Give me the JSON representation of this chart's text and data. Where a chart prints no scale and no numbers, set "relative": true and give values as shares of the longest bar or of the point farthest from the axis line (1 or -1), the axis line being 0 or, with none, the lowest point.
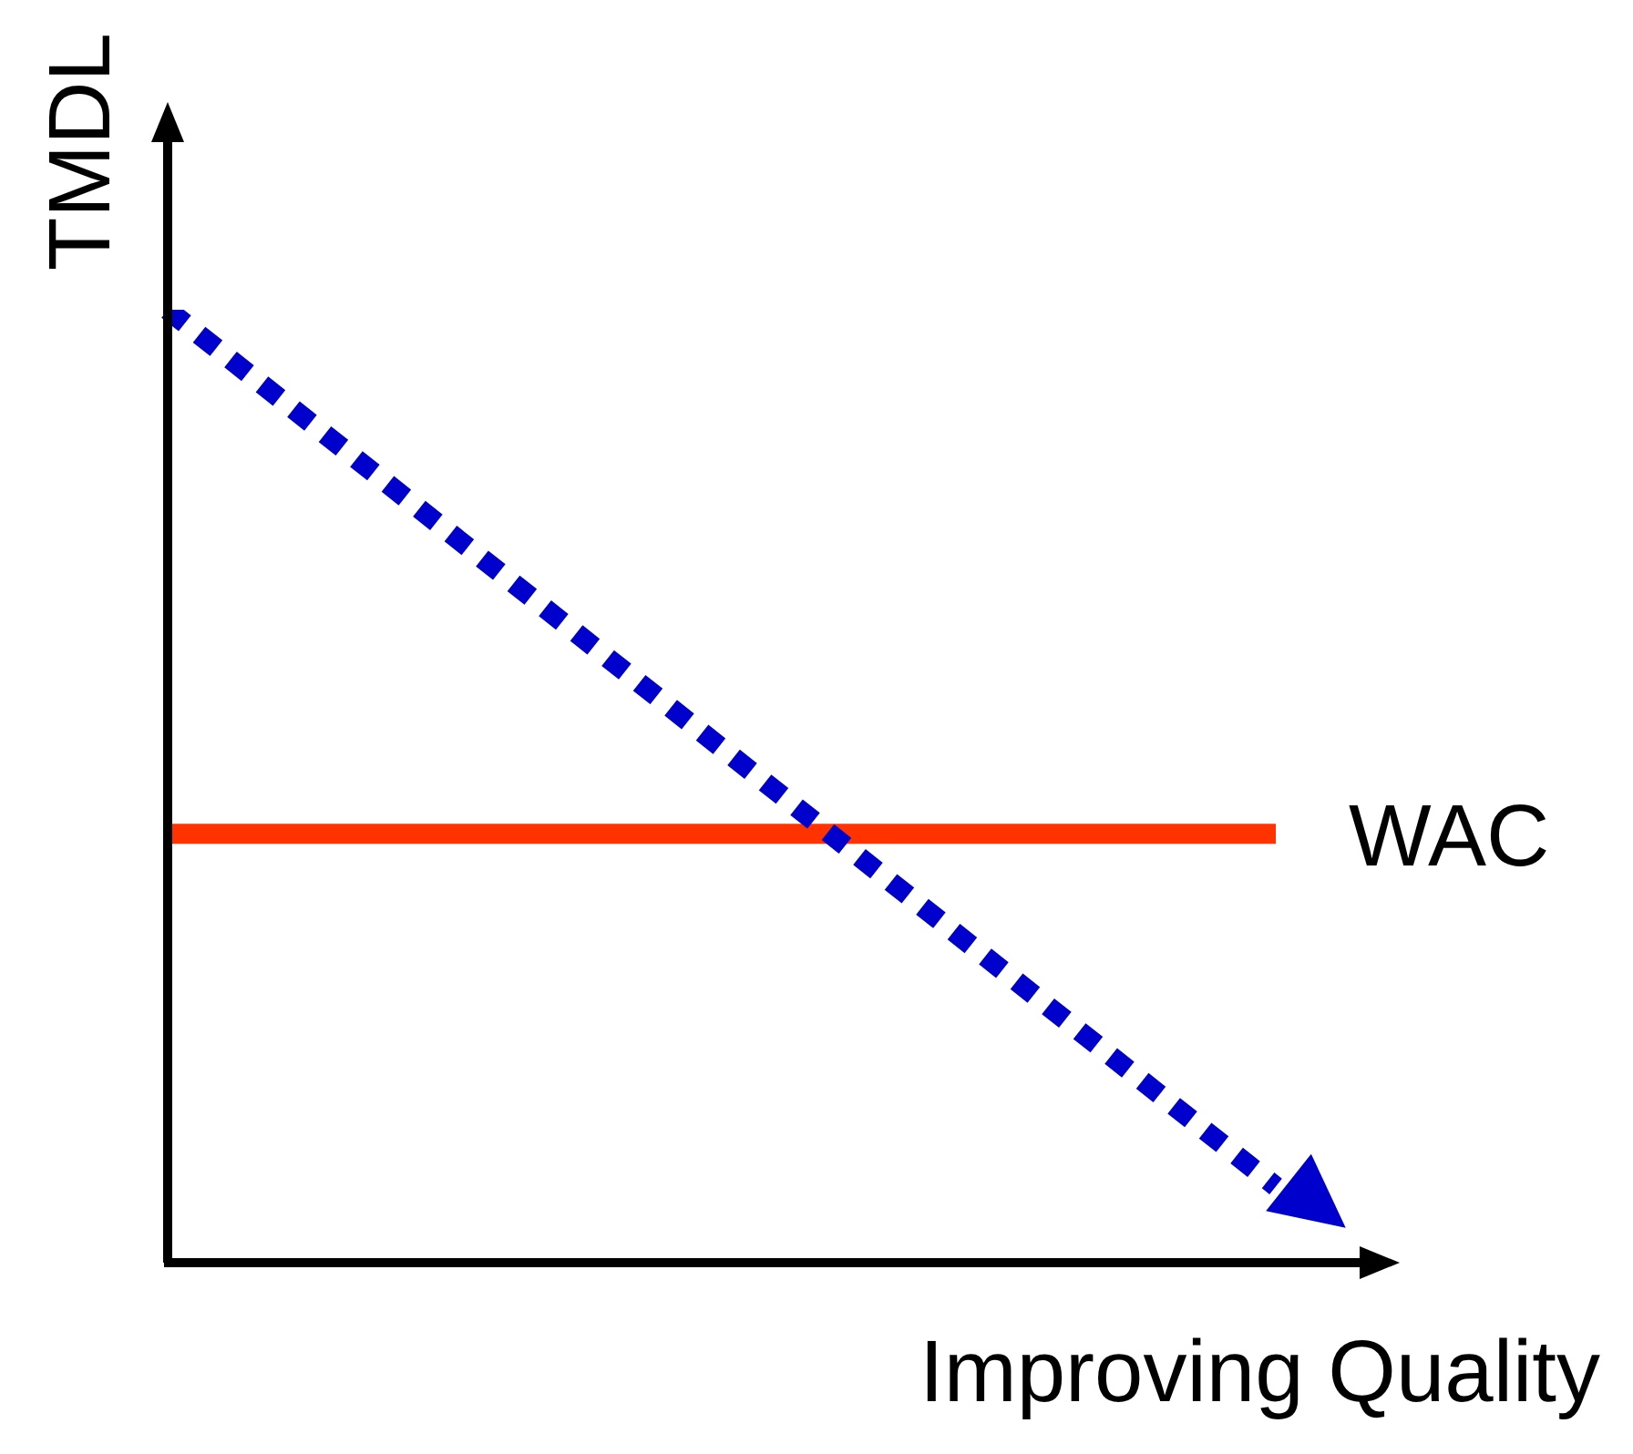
{
  "chart_data": {
    "type": "line",
    "relative": true,
    "xlabel": "Improving Quality",
    "ylabel": "TMDL",
    "categories": [
      null,
      null
    ],
    "series": [
      {
        "color": "#0000cc",
        "values": [
          1,
          0.08
        ],
        "line_style": "dashed"
      },
      {
        "name": "WAC",
        "color": "#ff3300",
        "values": [
          0.45,
          0.45
        ],
        "line_style": "solid"
      }
    ],
    "marker": "none",
    "legend": false
  }
}
